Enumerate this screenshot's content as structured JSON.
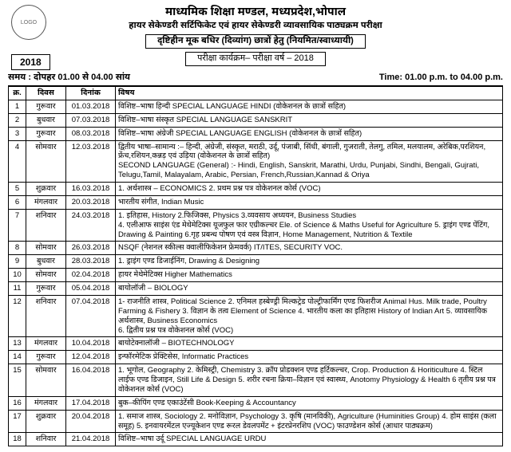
{
  "header": {
    "board": "माध्यमिक शिक्षा मण्डल, मध्यप्रदेश,भोपाल",
    "line1": "हायर सेकेण्डरी सर्टिफिकेट एवं हायर सेकेण्डरी व्यावसायिक पाठ्यक्रम परीक्षा",
    "line2": "दृष्टिहीन मूक बधिर (दिव्यांग) छात्रों हेतु (नियमित/स्वाध्यायी)",
    "line3": "परीक्षा कार्यक्रम– परीक्षा वर्ष – 2018",
    "year": "2018",
    "time_hi": "समय : दोपहर 01.00 से 04.00 सांय",
    "time_en": "Time: 01.00 p.m. to 04.00 p.m."
  },
  "columns": {
    "sr": "क्र.",
    "day": "दिवस",
    "date": "दिनांक",
    "subject": "विषय"
  },
  "rows": [
    {
      "sr": "1",
      "day": "गुरूवार",
      "date": "01.03.2018",
      "subject": "विशिष्ट–भाषा हिन्दी   SPECIAL LANGUAGE HINDI   (वोकेशनल के छात्रों सहित)"
    },
    {
      "sr": "2",
      "day": "बुधवार",
      "date": "07.03.2018",
      "subject": "विशिष्ट–भाषा संस्कृत   SPECIAL LANGUAGE SANSKRIT"
    },
    {
      "sr": "3",
      "day": "गुरूवार",
      "date": "08.03.2018",
      "subject": "विशिष्ट–भाषा अंग्रेजी SPECIAL LANGUAGE ENGLISH   (वोकेशनल के छात्रों सहित)"
    },
    {
      "sr": "4",
      "day": "सोमवार",
      "date": "12.03.2018",
      "subject": "द्वितीय भाषा–सामान्य :– हिन्दी, अंग्रेजी, संस्कृत, मराठी, उर्दू, पंजाबी, सिंधी, बंगाली, गुजराती, तेलगु, तमिल, मलयालम, अरेबिक,परशियन, फ्रेंच,रशियन,कन्नड़ एवं उड़िया (वोकेशनल के छात्रों सहित)\nSECOND LANGUAGE (General) :- Hindi, English, Sanskrit, Marathi, Urdu, Punjabi, Sindhi, Bengali, Gujrati, Telugu,Tamil, Malayalam, Arabic, Persian, French,Russian,Kannad & Oriya"
    },
    {
      "sr": "5",
      "day": "शुक्रवार",
      "date": "16.03.2018",
      "subject": "1. अर्थशास्त्र –   ECONOMICS 2. प्रथम प्रश्न पत्र वोकेशनल कोर्स (VOC)"
    },
    {
      "sr": "6",
      "day": "मंगलवार",
      "date": "20.03.2018",
      "subject": "भारतीय संगीत,   Indian Music"
    },
    {
      "sr": "7",
      "day": "शनिवार",
      "date": "24.03.2018",
      "subject": "1. इतिहास, History   2.फिजिक्स, Physics   3.व्यवसाय अध्ययन, Business Studies\n4. एलीआफ साइंस एंड मेथेमेटिक्स यूजफुल फार एग्रीकल्चर Ele. of Science & Maths Useful for Agriculture 5. ड्राइंग एण्ड पेंटिंग, Drawing & Painting 6.गृह प्रबन्ध पोषण एवं वस्त्र विज्ञान, Home Management, Nutrition & Textile"
    },
    {
      "sr": "8",
      "day": "सोमवार",
      "date": "26.03.2018",
      "subject": "NSQF (नेशनल स्कील्स क्वालीफिकेशन फ्रेमवर्क) IT/ITES, SECURITY VOC."
    },
    {
      "sr": "9",
      "day": "बुधवार",
      "date": "28.03.2018",
      "subject": "1. ड्राइंग एण्ड डिजाईनिंग, Drawing & Designing"
    },
    {
      "sr": "10",
      "day": "सोमवार",
      "date": "02.04.2018",
      "subject": "हायर मेथेमेटिक्स Higher Mathematics"
    },
    {
      "sr": "11",
      "day": "गुरूवार",
      "date": "05.04.2018",
      "subject": "बायोलॉजी –   BIOLOGY"
    },
    {
      "sr": "12",
      "day": "शनिवार",
      "date": "07.04.2018",
      "subject": "1- राजनीति शास्त्र, Political Science 2. एनिमल हस्बेण्ड्री मिल्कट्रेड पोल्ट्रीफार्मिंग एण्ड फिशरीज Animal Hus. Milk trade, Poultry Farming & Fishery 3. विज्ञान के तत्व Element of Science 4. भारतीय कला का इतिहास History of Indian Art 5. व्यावसायिक अर्थशास्त्र, Business Economics\n6. द्वितीय प्रश्न पत्र वोकेशनल कोर्स (VOC)"
    },
    {
      "sr": "13",
      "day": "मंगलवार",
      "date": "10.04.2018",
      "subject": "बायोटेक्नालॉजी –   BIOTECHNOLOGY"
    },
    {
      "sr": "14",
      "day": "गुरूवार",
      "date": "12.04.2018",
      "subject": "इन्फॉरमेटिक प्रेक्टिसेस,   Informatic Practices"
    },
    {
      "sr": "15",
      "day": "सोमवार",
      "date": "16.04.2018",
      "subject": "1. भूगोल, Geography 2. केमिस्ट्री, Chemistry 3. क्रॉप प्रोडक्शन एण्ड हर्टिकल्चर, Crop. Production & Horiticulture 4. स्टिल लाईफ एण्ड डिजाइन, Still Life & Design 5. शरीर रचना क्रिया–विज्ञान एवं स्वास्थ्य, Anotomy Physiology & Health 6 तृतीय प्रश्न पत्र वोकेशनल कोर्स (VOC)"
    },
    {
      "sr": "16",
      "day": "मंगलवार",
      "date": "17.04.2018",
      "subject": "बुक–कीपिंग एण्ड एकाउंटेंसी   Book-Keeping & Accountancy"
    },
    {
      "sr": "17",
      "day": "शुक्रवार",
      "date": "20.04.2018",
      "subject": "1. समाज शास्त्र, Sociology 2. मनोविज्ञान, Psychology 3. कृषि (मानविकी), Agriculture (Huminities Group) 4. होम साइंस (कला समूह) 5. इनवायरमेंटल एज्यूकेशन एण्ड रूरल डेवलपमेंट + इंटरप्रेनरशिप (VOC) फाउण्डेशन कोर्स (आधार पाठ्यक्रम)"
    },
    {
      "sr": "18",
      "day": "शनिवार",
      "date": "21.04.2018",
      "subject": "विशिष्ट–भाषा उर्दू   SPECIAL LANGUAGE URDU"
    }
  ]
}
